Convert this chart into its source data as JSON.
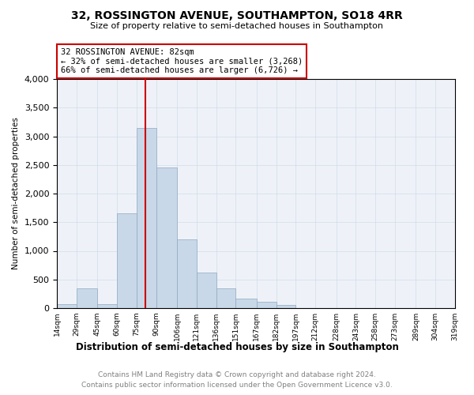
{
  "title": "32, ROSSINGTON AVENUE, SOUTHAMPTON, SO18 4RR",
  "subtitle": "Size of property relative to semi-detached houses in Southampton",
  "xlabel": "Distribution of semi-detached houses by size in Southampton",
  "ylabel": "Number of semi-detached properties",
  "footnote1": "Contains HM Land Registry data © Crown copyright and database right 2024.",
  "footnote2": "Contains public sector information licensed under the Open Government Licence v3.0.",
  "annotation_title": "32 ROSSINGTON AVENUE: 82sqm",
  "annotation_line1": "← 32% of semi-detached houses are smaller (3,268)",
  "annotation_line2": "66% of semi-detached houses are larger (6,726) →",
  "property_size": 82,
  "bar_color": "#c8d8e8",
  "bar_edge_color": "#90a8c0",
  "line_color": "#cc0000",
  "annotation_box_color": "#cc0000",
  "bins": [
    14,
    29,
    45,
    60,
    75,
    90,
    106,
    121,
    136,
    151,
    167,
    182,
    197,
    212,
    228,
    243,
    258,
    273,
    289,
    304,
    319
  ],
  "bin_labels": [
    "14sqm",
    "29sqm",
    "45sqm",
    "60sqm",
    "75sqm",
    "90sqm",
    "106sqm",
    "121sqm",
    "136sqm",
    "151sqm",
    "167sqm",
    "182sqm",
    "197sqm",
    "212sqm",
    "228sqm",
    "243sqm",
    "258sqm",
    "273sqm",
    "289sqm",
    "304sqm",
    "319sqm"
  ],
  "counts": [
    75,
    350,
    75,
    1650,
    3150,
    2450,
    1200,
    620,
    340,
    170,
    115,
    60,
    0,
    0,
    0,
    0,
    0,
    0,
    0,
    0
  ],
  "ylim": [
    0,
    4000
  ],
  "yticks": [
    0,
    500,
    1000,
    1500,
    2000,
    2500,
    3000,
    3500,
    4000
  ]
}
